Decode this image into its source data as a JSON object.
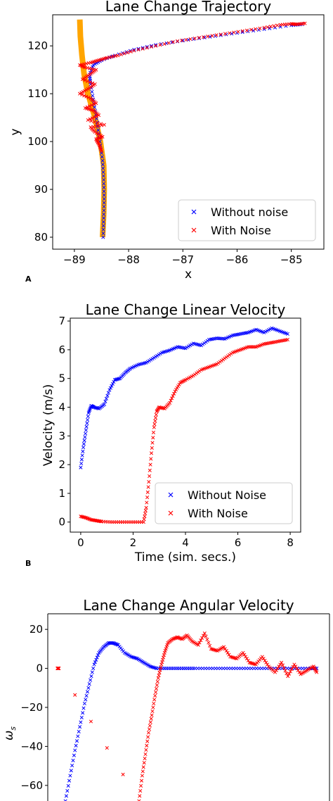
{
  "panel_letters": [
    "A",
    "B"
  ],
  "colors": {
    "blue": "#0000ff",
    "red": "#ff0000",
    "orange": "#ffa500",
    "axis": "#000000"
  },
  "chart_data": [
    {
      "type": "scatter",
      "title": "Lane Change Trajectory",
      "xlabel": "x",
      "ylabel": "y",
      "xlim": [
        -89.4,
        -84.4
      ],
      "ylim": [
        77.5,
        126.5
      ],
      "xticks": [
        -89,
        -88,
        -87,
        -86,
        -85
      ],
      "xtick_labels": [
        "−89",
        "−88",
        "−87",
        "−86",
        "−85"
      ],
      "yticks": [
        80,
        90,
        100,
        110,
        120
      ],
      "ytick_labels": [
        "80",
        "90",
        "100",
        "110",
        "120"
      ],
      "legend": {
        "position": "bottom-right",
        "entries": [
          "Without noise",
          "With Noise"
        ]
      },
      "reference_path": {
        "x": [
          -88.48,
          -88.46,
          -88.45,
          -88.46,
          -88.52,
          -88.62,
          -88.75,
          -88.82,
          -88.86,
          -88.89,
          -88.9
        ],
        "y": [
          80,
          85,
          90,
          95,
          100,
          105,
          110,
          114,
          118,
          122,
          125.5
        ]
      },
      "series": [
        {
          "name": "Without noise",
          "x": [
            -88.47,
            -88.46,
            -88.45,
            -88.46,
            -88.48,
            -88.53,
            -88.58,
            -88.64,
            -88.7,
            -88.72,
            -88.65,
            -88.5,
            -88.25,
            -87.9,
            -87.5,
            -87.0,
            -86.5,
            -86.0,
            -85.5,
            -85.0,
            -84.8
          ],
          "y": [
            80,
            84,
            88,
            92,
            96,
            100,
            104,
            108,
            112,
            114,
            116,
            117,
            118,
            119.2,
            120.2,
            121.1,
            121.9,
            122.7,
            123.5,
            124.3,
            124.5
          ]
        },
        {
          "name": "With Noise",
          "x": [
            -88.5,
            -88.55,
            -88.6,
            -88.48,
            -88.62,
            -88.7,
            -88.45,
            -88.75,
            -88.55,
            -88.65,
            -88.8,
            -88.6,
            -88.7,
            -88.9,
            -88.75,
            -88.62,
            -88.85,
            -88.72,
            -88.6,
            -88.8,
            -88.9,
            -88.7,
            -88.55,
            -88.4,
            -88.2,
            -87.9,
            -87.5,
            -87.1,
            -86.7,
            -86.3,
            -85.9,
            -85.5,
            -85.2,
            -85.0,
            -84.9,
            -84.75
          ],
          "y": [
            98,
            99.5,
            100.5,
            101,
            102,
            103,
            103.5,
            104.5,
            105.5,
            106.5,
            107,
            108,
            109,
            110,
            111,
            112,
            113,
            114,
            115,
            115.5,
            116,
            116.5,
            117,
            117.5,
            118,
            119,
            120,
            121,
            121.7,
            122.4,
            123.1,
            123.8,
            124.4,
            124.6,
            124.5,
            124.7
          ]
        }
      ]
    },
    {
      "type": "scatter",
      "title": "Lane Change Linear Velocity",
      "xlabel": "Time (sim. secs.)",
      "ylabel": "Velocity (m/s)",
      "xlim": [
        -0.4,
        8.4
      ],
      "ylim": [
        -0.35,
        7.1
      ],
      "xticks": [
        0,
        2,
        4,
        6,
        8
      ],
      "xtick_labels": [
        "0",
        "2",
        "4",
        "6",
        "8"
      ],
      "yticks": [
        0,
        1,
        2,
        3,
        4,
        5,
        6,
        7
      ],
      "ytick_labels": [
        "0",
        "1",
        "2",
        "3",
        "4",
        "5",
        "6",
        "7"
      ],
      "legend": {
        "position": "bottom-right",
        "entries": [
          "Without Noise",
          "With Noise"
        ]
      },
      "series": [
        {
          "name": "Without Noise",
          "x": [
            0.0,
            0.1,
            0.2,
            0.3,
            0.4,
            0.5,
            0.7,
            0.9,
            1.1,
            1.3,
            1.5,
            1.7,
            1.9,
            2.2,
            2.5,
            2.8,
            3.1,
            3.4,
            3.7,
            4.0,
            4.3,
            4.6,
            4.9,
            5.2,
            5.5,
            5.8,
            6.1,
            6.4,
            6.7,
            7.0,
            7.3,
            7.6,
            7.9
          ],
          "y": [
            1.9,
            2.6,
            3.2,
            3.8,
            4.05,
            4.0,
            3.95,
            4.1,
            4.6,
            4.95,
            5.0,
            5.2,
            5.35,
            5.48,
            5.55,
            5.72,
            5.9,
            5.98,
            6.1,
            6.05,
            6.22,
            6.15,
            6.35,
            6.4,
            6.38,
            6.5,
            6.55,
            6.6,
            6.7,
            6.6,
            6.75,
            6.65,
            6.55
          ]
        },
        {
          "name": "With Noise",
          "x": [
            0.0,
            0.2,
            0.4,
            0.6,
            0.8,
            1.2,
            1.6,
            2.0,
            2.4,
            2.5,
            2.6,
            2.7,
            2.8,
            2.9,
            3.0,
            3.2,
            3.4,
            3.6,
            3.8,
            4.0,
            4.3,
            4.6,
            4.9,
            5.2,
            5.5,
            5.8,
            6.1,
            6.4,
            6.7,
            7.0,
            7.3,
            7.6,
            7.9
          ],
          "y": [
            0.2,
            0.15,
            0.08,
            0.05,
            0.02,
            0.0,
            0.0,
            0.0,
            0.0,
            0.5,
            1.4,
            2.4,
            3.3,
            3.85,
            4.0,
            3.95,
            4.15,
            4.55,
            4.85,
            4.95,
            5.1,
            5.3,
            5.4,
            5.5,
            5.7,
            5.9,
            6.0,
            6.1,
            6.1,
            6.2,
            6.25,
            6.3,
            6.35
          ]
        }
      ]
    },
    {
      "type": "scatter",
      "title": "Lane Change Angular Velocity",
      "xlabel": "",
      "ylabel": "ωs",
      "xlim": [
        -0.4,
        8.4
      ],
      "ylim": [
        -68,
        28
      ],
      "xticks": [],
      "xtick_labels": [],
      "yticks": [
        -60,
        -40,
        -20,
        0,
        20
      ],
      "ytick_labels": [
        "−60",
        "−40",
        "−20",
        "0",
        "20"
      ],
      "series": [
        {
          "name": "",
          "x": [
            0.15,
            0.3,
            0.45,
            0.6,
            0.75,
            0.9,
            1.05,
            1.2,
            1.35,
            1.5,
            1.65,
            1.8,
            2.0,
            2.2,
            2.4,
            2.6,
            2.8,
            3.0,
            3.3,
            3.6,
            3.9,
            4.2,
            4.6,
            5.0,
            5.4,
            5.8,
            6.2,
            6.6,
            7.0,
            7.4,
            7.8,
            8.0
          ],
          "y": [
            -68,
            -55,
            -42,
            -30,
            -18,
            -8,
            2,
            8,
            11,
            13,
            13,
            12,
            8,
            6,
            5,
            3,
            1,
            0,
            0,
            0,
            0,
            0,
            0,
            0,
            0,
            0,
            0,
            0,
            0,
            0,
            0,
            0
          ]
        },
        {
          "name": "",
          "x": [
            -0.1,
            -0.05,
            2.45,
            2.55,
            2.65,
            2.75,
            2.85,
            2.95,
            3.05,
            3.15,
            3.25,
            3.35,
            3.5,
            3.65,
            3.8,
            3.95,
            4.1,
            4.3,
            4.5,
            4.7,
            4.9,
            5.1,
            5.3,
            5.5,
            5.7,
            5.9,
            6.1,
            6.3,
            6.5,
            6.7,
            6.9,
            7.1,
            7.3,
            7.5,
            7.7,
            7.9,
            8.0
          ],
          "y": [
            0,
            0,
            -68,
            -55,
            -44,
            -33,
            -24,
            -14,
            -5,
            2,
            8,
            13,
            15,
            16,
            15,
            17,
            14,
            12,
            18,
            10,
            9,
            11,
            6,
            5,
            8,
            3,
            2,
            6,
            1,
            -2,
            3,
            -4,
            2,
            -3,
            -1,
            1,
            -2
          ]
        }
      ]
    }
  ]
}
